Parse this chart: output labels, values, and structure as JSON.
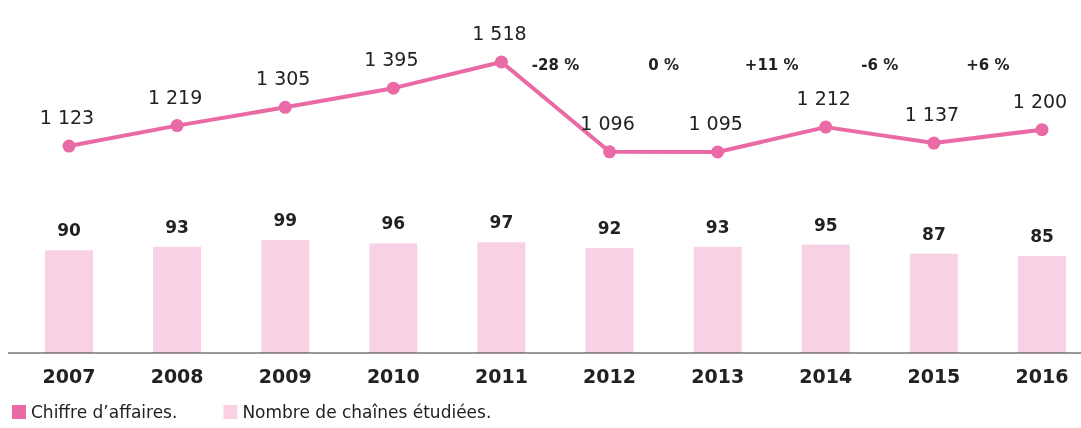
{
  "chart_data": [
    {
      "type": "line",
      "categories": [
        "2007",
        "2008",
        "2009",
        "2010",
        "2011",
        "2012",
        "2013",
        "2014",
        "2015",
        "2016"
      ],
      "tick_labels": false,
      "series": [
        {
          "name": "Chiffre d’affaires.",
          "color": "#ea6aa5",
          "values": [
            1123,
            1219,
            1305,
            1395,
            1518,
            1096,
            1095,
            1212,
            1137,
            1200
          ]
        }
      ],
      "annotations": [
        "-28 %",
        "0 %",
        "+11 %",
        "-6 %",
        "+6 %"
      ],
      "data_labels": true,
      "marker": "circle",
      "legend": "bottom left"
    },
    {
      "type": "bar",
      "categories": [
        "2007",
        "2008",
        "2009",
        "2010",
        "2011",
        "2012",
        "2013",
        "2014",
        "2015",
        "2016"
      ],
      "series": [
        {
          "name": "Nombre de chaînes étudiées.",
          "color": "#f8d2e4",
          "values": [
            90,
            93,
            99,
            96,
            97,
            92,
            93,
            95,
            87,
            85
          ]
        }
      ],
      "data_labels": true,
      "legend": "bottom left"
    }
  ]
}
